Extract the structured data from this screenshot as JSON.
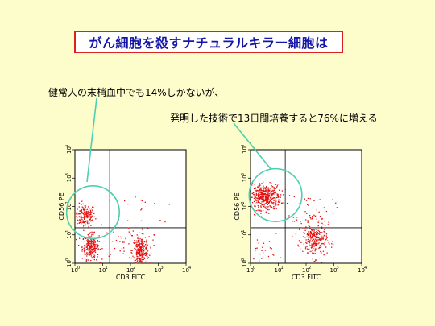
{
  "slide": {
    "title": "がん細胞を殺すナチュラルキラー細胞は",
    "caption_left": "健常人の末梢血中でも14%しかないが、",
    "caption_right": "発明した技術で13日間培養すると76%に増える"
  },
  "colors": {
    "background": "#fdfccb",
    "title_border": "#e02020",
    "title_text": "#1515a8",
    "dots": "#e31010",
    "highlight_circle": "#4ccfae"
  },
  "plots": [
    {
      "x_axis_label": "CD3 FITC",
      "y_axis_label": "CD56 PE",
      "x_ticks": [
        "10",
        "10",
        "10",
        "10",
        "10"
      ],
      "x_tick_exponents": [
        "0",
        "1",
        "2",
        "3",
        "4"
      ],
      "y_ticks": [
        "10",
        "10",
        "10",
        "10",
        "10"
      ],
      "y_tick_exponents": [
        "0",
        "1",
        "2",
        "3",
        "4"
      ],
      "quadrant_gates": [
        1.25,
        1.25
      ],
      "highlight": "NK cell population"
    },
    {
      "x_axis_label": "CD3 FITC",
      "y_axis_label": "CD56 PE",
      "x_ticks": [
        "10",
        "10",
        "10",
        "10",
        "10"
      ],
      "x_tick_exponents": [
        "0",
        "1",
        "2",
        "3",
        "4"
      ],
      "y_ticks": [
        "10",
        "10",
        "10",
        "10",
        "10"
      ],
      "y_tick_exponents": [
        "0",
        "1",
        "2",
        "3",
        "4"
      ],
      "quadrant_gates": [
        1.25,
        1.25
      ],
      "highlight": "NK cell population"
    }
  ]
}
